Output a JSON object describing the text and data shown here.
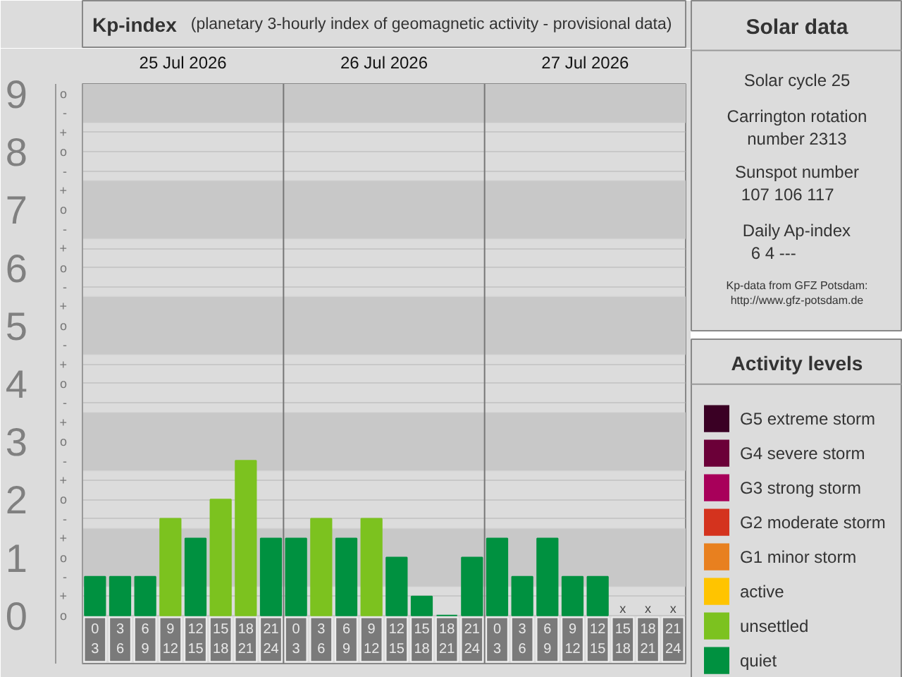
{
  "chart_data": [
    {
      "type": "bar",
      "title": "Kp-index",
      "subtitle": "(planetary 3-hourly index of geomagnetic activity - provisional data)",
      "categories": [
        "0\n3",
        "3\n6",
        "6\n9",
        "9\n12",
        "12\n15",
        "15\n18",
        "18\n21",
        "21\n24",
        "0\n3",
        "3\n6",
        "6\n9",
        "9\n12",
        "12\n15",
        "15\n18",
        "18\n21",
        "21\n24",
        "0\n3",
        "3\n6",
        "6\n9",
        "9\n12",
        "12\n15",
        "15\n18",
        "18\n21",
        "21\n24"
      ],
      "series": [
        {
          "name": "quiet",
          "color": "#009140",
          "values": [
            0.67,
            0.67,
            0.67,
            null,
            1.33,
            null,
            null,
            1.33,
            1.33,
            null,
            1.33,
            null,
            1,
            0.33,
            0,
            1,
            1.33,
            0.67,
            1.33,
            0.67,
            0.67,
            null,
            null,
            null
          ],
          "value_labels": [
            null,
            null,
            null,
            null,
            null,
            null,
            null,
            null,
            null,
            null,
            null,
            null,
            null,
            null,
            null,
            null,
            null,
            null,
            null,
            null,
            null,
            "x",
            "x",
            "x"
          ]
        },
        {
          "name": "unsettled",
          "color": "#7cc21f",
          "values": [
            null,
            null,
            null,
            1.67,
            null,
            2,
            2.67,
            null,
            null,
            1.67,
            null,
            1.67,
            null,
            null,
            null,
            null,
            null,
            null,
            null,
            null,
            null,
            null,
            null,
            null
          ]
        },
        {
          "name": "active",
          "color": "#ffc400",
          "values": [
            null,
            null,
            null,
            null,
            null,
            null,
            null,
            null,
            null,
            null,
            null,
            null,
            null,
            null,
            null,
            null,
            null,
            null,
            null,
            null,
            null,
            null,
            null,
            null
          ]
        },
        {
          "name": "G1 minor storm",
          "color": "#e8801f",
          "values": [
            null,
            null,
            null,
            null,
            null,
            null,
            null,
            null,
            null,
            null,
            null,
            null,
            null,
            null,
            null,
            null,
            null,
            null,
            null,
            null,
            null,
            null,
            null,
            null
          ]
        },
        {
          "name": "G2 moderate storm",
          "color": "#d4331e",
          "values": [
            null,
            null,
            null,
            null,
            null,
            null,
            null,
            null,
            null,
            null,
            null,
            null,
            null,
            null,
            null,
            null,
            null,
            null,
            null,
            null,
            null,
            null,
            null,
            null
          ]
        },
        {
          "name": "G3 strong storm",
          "color": "#a8005a",
          "values": [
            null,
            null,
            null,
            null,
            null,
            null,
            null,
            null,
            null,
            null,
            null,
            null,
            null,
            null,
            null,
            null,
            null,
            null,
            null,
            null,
            null,
            null,
            null,
            null
          ]
        },
        {
          "name": "G4 severe storm",
          "color": "#6b0038",
          "values": [
            null,
            null,
            null,
            null,
            null,
            null,
            null,
            null,
            null,
            null,
            null,
            null,
            null,
            null,
            null,
            null,
            null,
            null,
            null,
            null,
            null,
            null,
            null,
            null
          ]
        },
        {
          "name": "G5 extreme storm",
          "color": "#3a0024",
          "values": [
            null,
            null,
            null,
            null,
            null,
            null,
            null,
            null,
            null,
            null,
            null,
            null,
            null,
            null,
            null,
            null,
            null,
            null,
            null,
            null,
            null,
            null,
            null,
            null
          ]
        }
      ],
      "ylim": [
        -0.83,
        9.17
      ],
      "yticks": [
        0,
        1,
        2,
        3,
        4,
        5,
        6,
        7,
        8,
        9
      ],
      "bands": [
        {
          "axis": "y",
          "from": 0.5,
          "to": 1.5,
          "color": "#c8c8c8"
        },
        {
          "axis": "y",
          "from": 2.5,
          "to": 3.5,
          "color": "#c8c8c8"
        },
        {
          "axis": "y",
          "from": 4.5,
          "to": 5.5,
          "color": "#c8c8c8"
        },
        {
          "axis": "y",
          "from": 6.5,
          "to": 7.5,
          "color": "#c8c8c8"
        },
        {
          "axis": "y",
          "from": 8.5,
          "to": 9.5,
          "color": "#c8c8c8"
        }
      ],
      "annotations": [
        "25 Jul 2026",
        "26 Jul 2026",
        "27 Jul 2026",
        "o",
        "+",
        "-",
        "o",
        "+",
        "-",
        "o",
        "+",
        "-",
        "o",
        "+",
        "-",
        "o",
        "+",
        "-",
        "o",
        "+",
        "-",
        "o",
        "+",
        "-",
        "o",
        "+",
        "-",
        "o",
        "+",
        "-",
        "o"
      ],
      "grid": "y",
      "legend": "right",
      "legend_title": "Activity levels"
    },
    {
      "type": "other",
      "title": "Solar data",
      "annotations": [
        "Solar cycle 25",
        "Carrington rotation\nnumber 2313",
        "Sunspot number",
        "107   106   117",
        "Daily Ap-index",
        "6      4      ---",
        "Kp-data from GFZ Potsdam:\nhttp://www.gfz-potsdam.de"
      ]
    }
  ]
}
